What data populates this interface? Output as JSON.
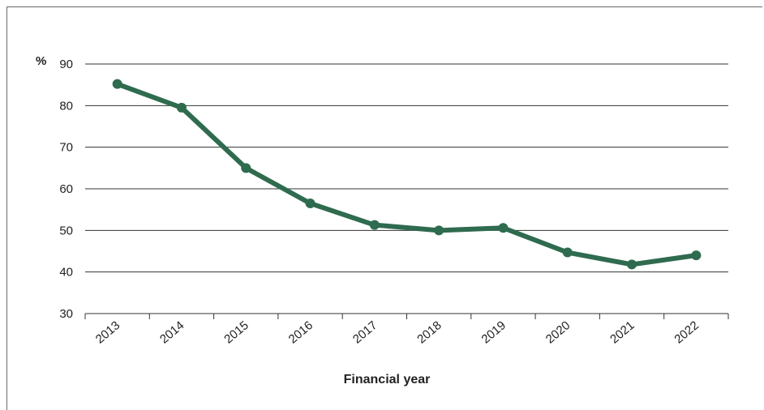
{
  "chart_data": {
    "type": "line",
    "unit_label": "%",
    "xlabel": "Financial year",
    "ylabel": "",
    "categories": [
      "2013",
      "2014",
      "2015",
      "2016",
      "2017",
      "2018",
      "2019",
      "2020",
      "2021",
      "2022"
    ],
    "series": [
      {
        "values": [
          85.2,
          79.5,
          65.0,
          56.5,
          51.3,
          50.0,
          50.6,
          44.7,
          41.8,
          44.0
        ],
        "color": "#2f6b4f"
      }
    ],
    "yticks": [
      30,
      40,
      50,
      60,
      70,
      80,
      90
    ],
    "ylim": [
      30,
      90
    ],
    "grid": "horizontal",
    "legend": "none"
  }
}
